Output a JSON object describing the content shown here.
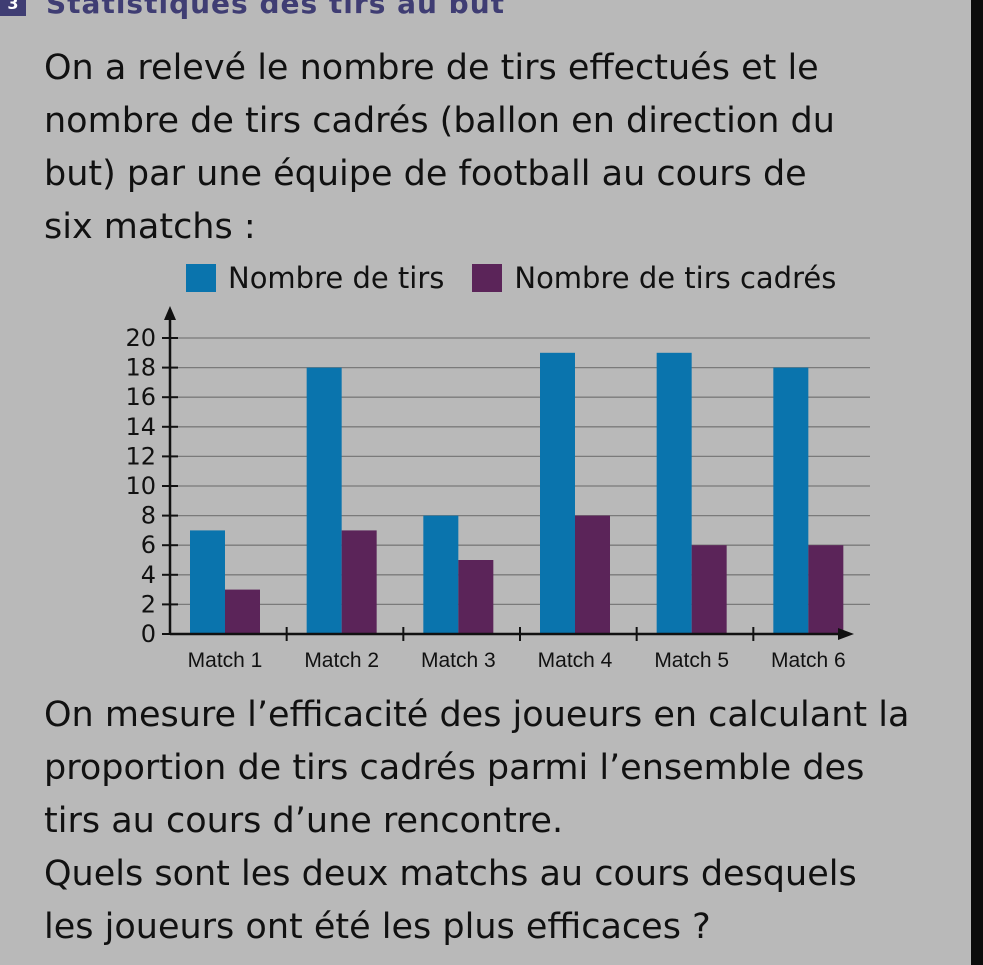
{
  "header": {
    "badge": "3",
    "title": "Statistiques des tirs au but"
  },
  "intro": {
    "line1": "On a relevé le nombre de tirs effectués et le",
    "line2": "nombre de tirs cadrés (ballon en direction du",
    "line3": "but) par une équipe de football au cours de",
    "line4": "six matchs :"
  },
  "question": {
    "line1": "On mesure l’efficacité des joueurs en calculant la",
    "line2": "proportion de tirs cadrés parmi l’ensemble des",
    "line3": "tirs au cours d’une rencontre.",
    "line4": "Quels sont les deux matchs au cours desquels",
    "line5": "les joueurs ont été les plus efficaces ?"
  },
  "chart_data": {
    "type": "bar",
    "categories": [
      "Match 1",
      "Match 2",
      "Match 3",
      "Match 4",
      "Match 5",
      "Match 6"
    ],
    "series": [
      {
        "name": "Nombre de tirs",
        "values": [
          7,
          18,
          8,
          19,
          19,
          18
        ],
        "color": "#0a74ad"
      },
      {
        "name": "Nombre de tirs cadrés",
        "values": [
          3,
          7,
          5,
          8,
          6,
          6
        ],
        "color": "#5b2459"
      }
    ],
    "yticks": [
      "0",
      "2",
      "4",
      "6",
      "8",
      "10",
      "12",
      "14",
      "16",
      "18",
      "20"
    ],
    "ylim": [
      0,
      20
    ],
    "grid": true,
    "legend_position": "top"
  }
}
